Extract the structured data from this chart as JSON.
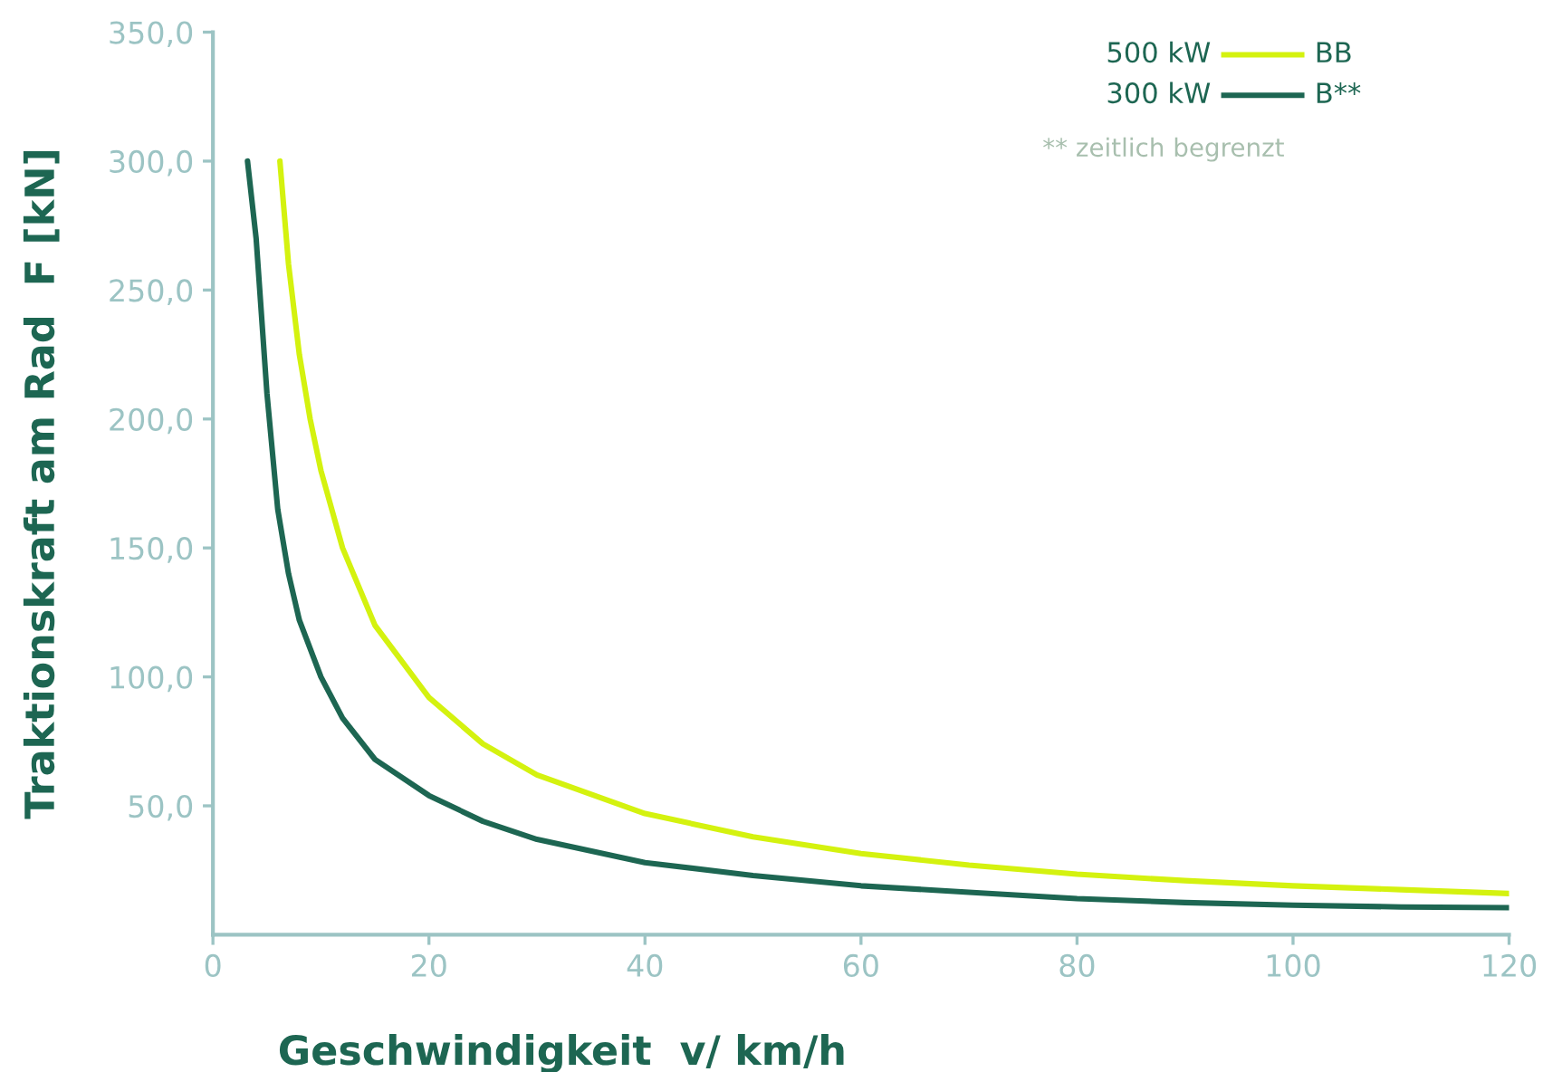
{
  "chart_data": {
    "type": "line",
    "xlabel": "Geschwindigkeit  v/ km/h",
    "ylabel": "Traktionskraft am Rad  F [kN]",
    "xlim": [
      0,
      120
    ],
    "xticks": [
      0,
      20,
      40,
      60,
      80,
      100,
      120
    ],
    "ylim": [
      0,
      350
    ],
    "yticks": [
      {
        "value": 50,
        "label": "50,0"
      },
      {
        "value": 100,
        "label": "100,0"
      },
      {
        "value": 150,
        "label": "150,0"
      },
      {
        "value": 200,
        "label": "200,0"
      },
      {
        "value": 250,
        "label": "250,0"
      },
      {
        "value": 300,
        "label": "300,0"
      },
      {
        "value": 350,
        "label": "350,0"
      }
    ],
    "grid": false,
    "legend": "top right",
    "annotations": [
      "500 kW",
      "300 kW",
      "** zeitlich begrenzt"
    ],
    "series": [
      {
        "name": "BB",
        "color": "#d4f20f",
        "x": [
          6.2,
          7,
          8,
          9,
          10,
          12,
          15,
          20,
          25,
          30,
          40,
          50,
          60,
          70,
          80,
          90,
          100,
          110,
          120
        ],
        "values": [
          300,
          260,
          225,
          200,
          180,
          150,
          120,
          92,
          74,
          62,
          47,
          38,
          31.5,
          27,
          23.5,
          21,
          19,
          17.5,
          16
        ]
      },
      {
        "name": "B**",
        "color": "#1d6652",
        "x": [
          3.2,
          4,
          5,
          6,
          7,
          8,
          10,
          12,
          15,
          20,
          25,
          30,
          40,
          50,
          60,
          70,
          80,
          90,
          100,
          110,
          120
        ],
        "values": [
          300,
          270,
          210,
          165,
          140,
          122,
          100,
          84,
          68,
          54,
          44,
          37,
          28,
          23,
          19,
          16.5,
          14,
          12.5,
          11.5,
          10.8,
          10.5
        ]
      }
    ]
  }
}
